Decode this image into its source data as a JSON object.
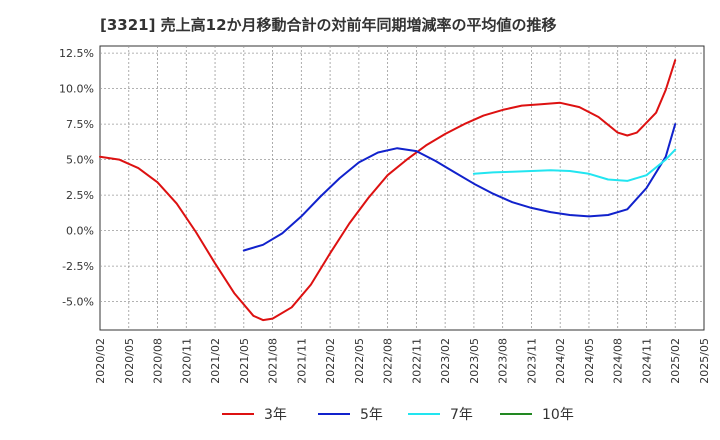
{
  "chart_data": {
    "type": "line",
    "title": "[3321]  売上高12か月移動合計の対前年同期増減率の平均値の推移",
    "xlabel": "",
    "ylabel": "",
    "x": [
      "2020/02",
      "2020/05",
      "2020/08",
      "2020/11",
      "2021/02",
      "2021/05",
      "2021/08",
      "2021/11",
      "2022/02",
      "2022/05",
      "2022/08",
      "2022/11",
      "2023/02",
      "2023/05",
      "2023/08",
      "2023/11",
      "2024/02",
      "2024/05",
      "2024/08",
      "2024/11",
      "2025/02",
      "2025/05"
    ],
    "ylim": [
      -7.0,
      13.0
    ],
    "yticks": [
      -5.0,
      -2.5,
      0.0,
      2.5,
      5.0,
      7.5,
      10.0,
      12.5
    ],
    "ytick_labels": [
      "-5.0%",
      "-2.5%",
      "0.0%",
      "2.5%",
      "5.0%",
      "7.5%",
      "10.0%",
      "12.5%"
    ],
    "grid": true,
    "legend_position": "bottom",
    "series": [
      {
        "name": "3年",
        "color": "#dd1111",
        "points": [
          [
            "2020/02",
            5.2
          ],
          [
            "2020/04",
            5.0
          ],
          [
            "2020/06",
            4.4
          ],
          [
            "2020/08",
            3.4
          ],
          [
            "2020/10",
            1.9
          ],
          [
            "2020/12",
            -0.1
          ],
          [
            "2021/02",
            -2.3
          ],
          [
            "2021/04",
            -4.4
          ],
          [
            "2021/06",
            -6.0
          ],
          [
            "2021/07",
            -6.3
          ],
          [
            "2021/08",
            -6.2
          ],
          [
            "2021/10",
            -5.4
          ],
          [
            "2021/12",
            -3.8
          ],
          [
            "2022/02",
            -1.6
          ],
          [
            "2022/04",
            0.5
          ],
          [
            "2022/06",
            2.3
          ],
          [
            "2022/08",
            3.9
          ],
          [
            "2022/10",
            5.0
          ],
          [
            "2022/12",
            6.0
          ],
          [
            "2023/02",
            6.8
          ],
          [
            "2023/04",
            7.5
          ],
          [
            "2023/06",
            8.1
          ],
          [
            "2023/08",
            8.5
          ],
          [
            "2023/10",
            8.8
          ],
          [
            "2023/12",
            8.9
          ],
          [
            "2024/02",
            9.0
          ],
          [
            "2024/04",
            8.7
          ],
          [
            "2024/06",
            8.0
          ],
          [
            "2024/08",
            6.9
          ],
          [
            "2024/09",
            6.7
          ],
          [
            "2024/10",
            6.9
          ],
          [
            "2024/12",
            8.3
          ],
          [
            "2025/01",
            9.9
          ],
          [
            "2025/02",
            12.0
          ]
        ]
      },
      {
        "name": "5年",
        "color": "#1122cc",
        "points": [
          [
            "2021/05",
            -1.4
          ],
          [
            "2021/07",
            -1.0
          ],
          [
            "2021/09",
            -0.2
          ],
          [
            "2021/11",
            1.0
          ],
          [
            "2022/01",
            2.4
          ],
          [
            "2022/03",
            3.7
          ],
          [
            "2022/05",
            4.8
          ],
          [
            "2022/07",
            5.5
          ],
          [
            "2022/09",
            5.8
          ],
          [
            "2022/11",
            5.6
          ],
          [
            "2023/01",
            4.9
          ],
          [
            "2023/03",
            4.1
          ],
          [
            "2023/05",
            3.3
          ],
          [
            "2023/07",
            2.6
          ],
          [
            "2023/09",
            2.0
          ],
          [
            "2023/11",
            1.6
          ],
          [
            "2024/01",
            1.3
          ],
          [
            "2024/03",
            1.1
          ],
          [
            "2024/05",
            1.0
          ],
          [
            "2024/07",
            1.1
          ],
          [
            "2024/09",
            1.5
          ],
          [
            "2024/11",
            3.0
          ],
          [
            "2025/01",
            5.2
          ],
          [
            "2025/02",
            7.5
          ]
        ]
      },
      {
        "name": "7年",
        "color": "#22e5f0",
        "points": [
          [
            "2023/05",
            4.0
          ],
          [
            "2023/07",
            4.1
          ],
          [
            "2023/09",
            4.15
          ],
          [
            "2023/11",
            4.2
          ],
          [
            "2024/01",
            4.25
          ],
          [
            "2024/03",
            4.2
          ],
          [
            "2024/05",
            4.0
          ],
          [
            "2024/07",
            3.6
          ],
          [
            "2024/09",
            3.5
          ],
          [
            "2024/11",
            3.9
          ],
          [
            "2025/01",
            5.0
          ],
          [
            "2025/02",
            5.7
          ]
        ]
      },
      {
        "name": "10年",
        "color": "#228822",
        "points": []
      }
    ]
  }
}
